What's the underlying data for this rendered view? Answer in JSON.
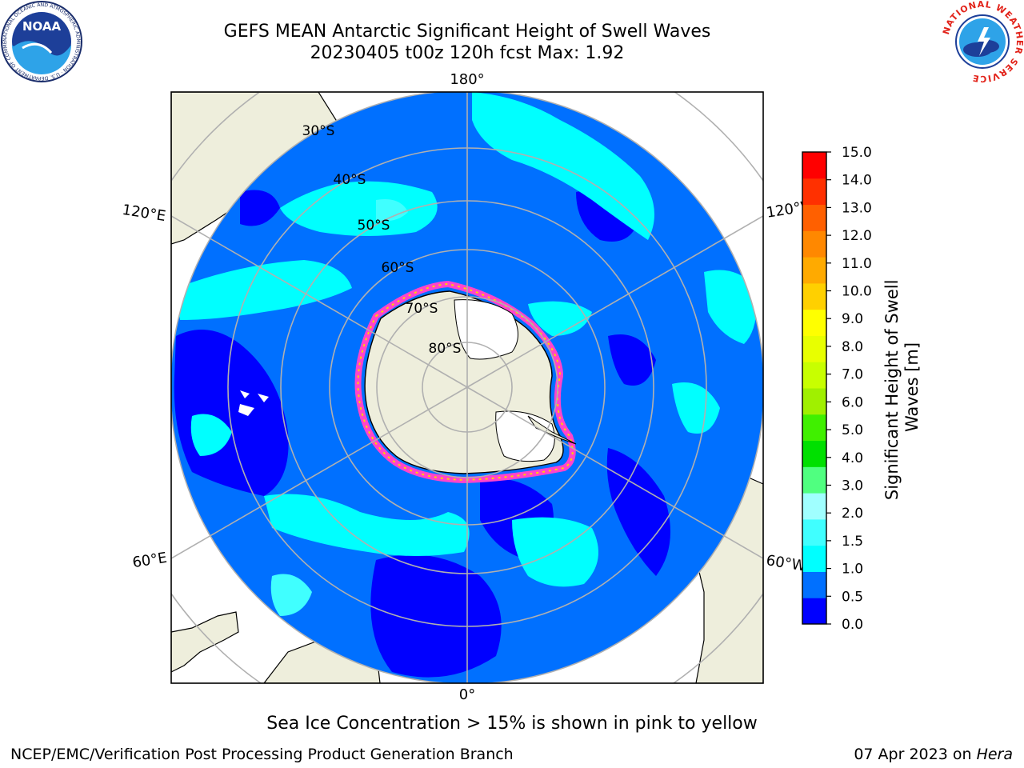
{
  "title": {
    "line1": "GEFS MEAN Antarctic Significant Height of Swell Waves",
    "line2": "20230405 t00z 120h fcst   Max: 1.92"
  },
  "map": {
    "projection": "south-polar-stereographic",
    "longitude_labels": {
      "top": "180°",
      "bottom": "0°",
      "upper_left": "120°E",
      "upper_right": "120°W",
      "lower_left": "60°E",
      "lower_right": "60°W"
    },
    "latitude_labels": [
      "30°S",
      "40°S",
      "50°S",
      "60°S",
      "70°S",
      "80°S"
    ]
  },
  "colorbar": {
    "label": "Significant Height of Swell Waves [m]",
    "label_lines": [
      "Significant Height of Swell",
      "Waves [m]"
    ],
    "ticks": [
      "0.0",
      "0.5",
      "1.0",
      "1.5",
      "2.0",
      "3.0",
      "4.0",
      "5.0",
      "6.0",
      "7.0",
      "8.0",
      "9.0",
      "10.0",
      "11.0",
      "12.0",
      "13.0",
      "14.0",
      "15.0"
    ],
    "colors": [
      "#0000ff",
      "#0070ff",
      "#00ffff",
      "#40ffff",
      "#a0ffff",
      "#50ff80",
      "#00e000",
      "#40f000",
      "#a0f000",
      "#c8ff00",
      "#e8ff00",
      "#ffff00",
      "#ffd000",
      "#ffaa00",
      "#ff8800",
      "#ff6000",
      "#ff3000",
      "#ff0000"
    ]
  },
  "colors": {
    "land": "#eeeedc",
    "deep_blue": "#0000ff",
    "mid_blue": "#0070ff",
    "cyan": "#00ffff",
    "light_cyan": "#40ffff",
    "ice_edge": "#ff44cc",
    "grid": "#b0b0b0"
  },
  "logos": {
    "noaa": {
      "text": "NOAA",
      "ring": "NATIONAL OCEANIC AND ATMOSPHERIC ADMINISTRATION · U.S. DEPARTMENT OF COMMERCE"
    },
    "nws": {
      "ring": "NATIONAL WEATHER SERVICE"
    }
  },
  "footer": {
    "note": "Sea Ice Concentration > 15% is shown in pink to yellow",
    "credit": "NCEP/EMC/Verification Post Processing Product Generation Branch",
    "date": "07 Apr 2023 on ",
    "host": "Hera"
  }
}
